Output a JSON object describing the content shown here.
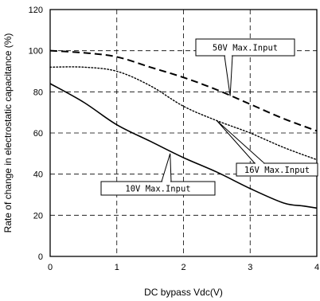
{
  "chart_data": {
    "type": "line",
    "title": "",
    "xlabel": "DC bypass Vdc(V)",
    "ylabel": "Rate of change in electrostatic capacitance (%)",
    "xlim": [
      0,
      4
    ],
    "ylim": [
      0,
      120
    ],
    "xticks": [
      0,
      1,
      2,
      3,
      4
    ],
    "yticks": [
      0,
      20,
      40,
      60,
      80,
      100,
      120
    ],
    "xtick_labels": [
      "0",
      "1",
      "2",
      "3",
      "4"
    ],
    "ytick_labels": [
      "0",
      "20",
      "40",
      "60",
      "80",
      "100",
      "120"
    ],
    "grid": true,
    "legend": "none",
    "series": [
      {
        "name": "50V Max.Input",
        "style": "dashed",
        "x": [
          0,
          0.5,
          1.0,
          1.5,
          2.0,
          2.5,
          3.0,
          3.5,
          4.0
        ],
        "y": [
          100,
          99,
          97,
          92,
          87,
          81,
          74,
          67,
          61
        ]
      },
      {
        "name": "16V Max.Input",
        "style": "dotted",
        "x": [
          0,
          0.5,
          1.0,
          1.5,
          2.0,
          2.5,
          3.0,
          3.5,
          4.0
        ],
        "y": [
          92,
          92,
          90,
          83,
          73,
          66,
          60,
          53,
          47
        ]
      },
      {
        "name": "10V Max.Input",
        "style": "solid",
        "x": [
          0,
          0.5,
          1.0,
          1.5,
          2.0,
          2.5,
          3.0,
          3.5,
          3.8,
          4.0
        ],
        "y": [
          84,
          75,
          64,
          56,
          48,
          41,
          33,
          26,
          24.5,
          23.5
        ]
      }
    ],
    "annotations": [
      {
        "text": "50V Max.Input",
        "series": 0,
        "point": [
          2.7,
          78
        ]
      },
      {
        "text": "16V Max.Input",
        "series": 1,
        "point": [
          2.5,
          66
        ]
      },
      {
        "text": "10V Max.Input",
        "series": 2,
        "point": [
          1.8,
          50
        ]
      }
    ]
  }
}
